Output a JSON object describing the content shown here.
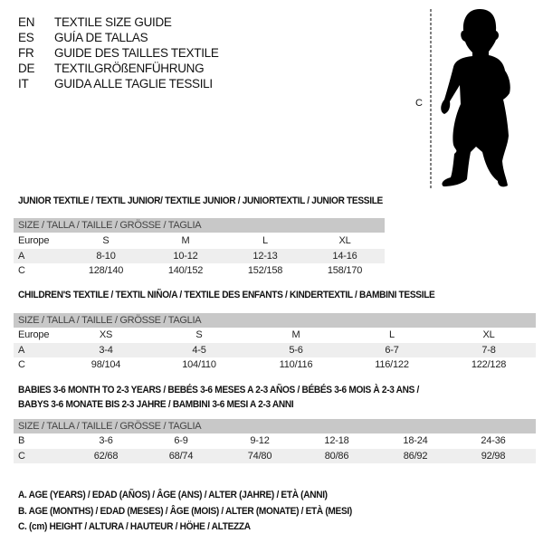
{
  "languages": [
    {
      "code": "EN",
      "title": "TEXTILE SIZE GUIDE"
    },
    {
      "code": "ES",
      "title": "GUÍA DE TALLAS"
    },
    {
      "code": "FR",
      "title": "GUIDE DES TAILLES TEXTILE"
    },
    {
      "code": "DE",
      "title": "TEXTILGRÖßENFÜHRUNG"
    },
    {
      "code": "IT",
      "title": "GUIDA ALLE TAGLIE TESSILI"
    }
  ],
  "figure": {
    "label": "C",
    "icon": "child-silhouette-icon"
  },
  "size_header": "SIZE / TALLA / TAILLE / GRÖSSE / TAGLIA",
  "junior": {
    "title": "JUNIOR TEXTILE / TEXTIL JUNIOR/ TEXTILE JUNIOR / JUNIORTEXTIL / JUNIOR TESSILE",
    "rows": [
      {
        "label": "Europe",
        "values": [
          "S",
          "M",
          "L",
          "XL"
        ]
      },
      {
        "label": "A",
        "values": [
          "8-10",
          "10-12",
          "12-13",
          "14-16"
        ]
      },
      {
        "label": "C",
        "values": [
          "128/140",
          "140/152",
          "152/158",
          "158/170"
        ]
      }
    ]
  },
  "children": {
    "title": "CHILDREN'S TEXTILE / TEXTIL NIÑO/A / TEXTILE DES ENFANTS / KINDERTEXTIL / BAMBINI TESSILE",
    "rows": [
      {
        "label": "Europe",
        "values": [
          "XS",
          "S",
          "M",
          "L",
          "XL"
        ]
      },
      {
        "label": "A",
        "values": [
          "3-4",
          "4-5",
          "5-6",
          "6-7",
          "7-8"
        ]
      },
      {
        "label": "C",
        "values": [
          "98/104",
          "104/110",
          "110/116",
          "116/122",
          "122/128"
        ]
      }
    ]
  },
  "babies": {
    "title_line1": "BABIES 3-6 MONTH TO 2-3 YEARS / BEBÉS 3-6 MESES A 2-3 AÑOS / BÉBÉS 3-6 MOIS À 2-3 ANS /",
    "title_line2": "BABYS 3-6 MONATE BIS 2-3 JAHRE / BAMBINI 3-6 MESI A 2-3 ANNI",
    "rows": [
      {
        "label": "B",
        "values": [
          "3-6",
          "6-9",
          "9-12",
          "12-18",
          "18-24",
          "24-36"
        ]
      },
      {
        "label": "C",
        "values": [
          "62/68",
          "68/74",
          "74/80",
          "80/86",
          "86/92",
          "92/98"
        ]
      }
    ]
  },
  "legend": [
    "A. AGE (YEARS) / EDAD (AÑOS) / ÂGE (ANS) / ALTER (JAHRE) / ETÀ (ANNI)",
    "B. AGE (MONTHS) / EDAD (MESES) / ÂGE (MOIS) / ALTER (MONATE) / ETÀ (MESI)",
    "C. (cm) HEIGHT / ALTURA / HAUTEUR / HÖHE / ALTEZZA"
  ]
}
